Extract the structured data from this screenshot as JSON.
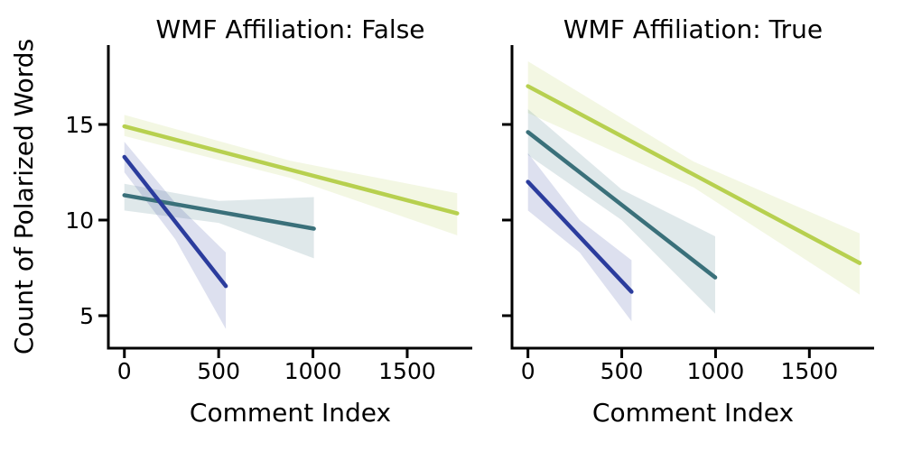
{
  "figure": {
    "ylabel": "Count of Polarized Words",
    "background": "#ffffff",
    "text_color": "#000000",
    "axis_color": "#000000"
  },
  "chart_data": [
    {
      "type": "line",
      "title": "WMF Affiliation: False",
      "xlabel": "Comment Index",
      "ylabel": "Count of Polarized Words",
      "xlim": [
        -85,
        1845
      ],
      "ylim": [
        3.3,
        19.15
      ],
      "xticks": [
        0,
        500,
        1000,
        1500
      ],
      "yticks": [
        5,
        10,
        15
      ],
      "show_ytick_labels": true,
      "grid": false,
      "legend": "none",
      "series": [
        {
          "name": "wmf-false-yellowgreen-trend",
          "color": "#b7d04f",
          "x": [
            0,
            1765
          ],
          "y": [
            14.9,
            10.35
          ],
          "ci_x": [
            0,
            880,
            1765
          ],
          "ci_lo": [
            14.4,
            12.2,
            9.2
          ],
          "ci_hi": [
            15.5,
            13.1,
            11.4
          ]
        },
        {
          "name": "wmf-false-teal-trend",
          "color": "#3a707a",
          "x": [
            0,
            1005
          ],
          "y": [
            11.3,
            9.55
          ],
          "ci_x": [
            0,
            500,
            1005
          ],
          "ci_lo": [
            10.5,
            9.85,
            8.0
          ],
          "ci_hi": [
            11.9,
            11.0,
            11.2
          ]
        },
        {
          "name": "wmf-false-blue-trend",
          "color": "#2b3c9d",
          "x": [
            0,
            538
          ],
          "y": [
            13.3,
            6.55
          ],
          "ci_x": [
            0,
            270,
            538
          ],
          "ci_lo": [
            12.5,
            9.0,
            4.3
          ],
          "ci_hi": [
            14.1,
            10.9,
            8.3
          ]
        }
      ]
    },
    {
      "type": "line",
      "title": "WMF Affiliation: True",
      "xlabel": "Comment Index",
      "ylabel": "",
      "xlim": [
        -85,
        1845
      ],
      "ylim": [
        3.3,
        19.15
      ],
      "xticks": [
        0,
        500,
        1000,
        1500
      ],
      "yticks": [
        5,
        10,
        15
      ],
      "show_ytick_labels": false,
      "grid": false,
      "legend": "none",
      "series": [
        {
          "name": "wmf-true-yellowgreen-trend",
          "color": "#b7d04f",
          "x": [
            0,
            1768
          ],
          "y": [
            17.0,
            7.75
          ],
          "ci_x": [
            0,
            884,
            1768
          ],
          "ci_lo": [
            15.6,
            11.7,
            6.1
          ],
          "ci_hi": [
            18.3,
            13.05,
            9.3
          ]
        },
        {
          "name": "wmf-true-teal-trend",
          "color": "#3a707a",
          "x": [
            0,
            998
          ],
          "y": [
            14.6,
            7.0
          ],
          "ci_x": [
            0,
            500,
            998
          ],
          "ci_lo": [
            13.4,
            10.0,
            5.1
          ],
          "ci_hi": [
            15.8,
            11.6,
            9.15
          ]
        },
        {
          "name": "wmf-true-blue-trend",
          "color": "#2b3c9d",
          "x": [
            0,
            552
          ],
          "y": [
            12.0,
            6.25
          ],
          "ci_x": [
            0,
            276,
            552
          ],
          "ci_lo": [
            10.5,
            8.3,
            4.7
          ],
          "ci_hi": [
            13.5,
            10.0,
            7.9
          ]
        }
      ]
    }
  ],
  "style": {
    "band_opacity": 0.16,
    "line_width": 4.5,
    "spine_width": 3,
    "tick_width": 3,
    "tick_len": 11,
    "tick_font": 25,
    "label_font": 28,
    "title_font": 28
  }
}
